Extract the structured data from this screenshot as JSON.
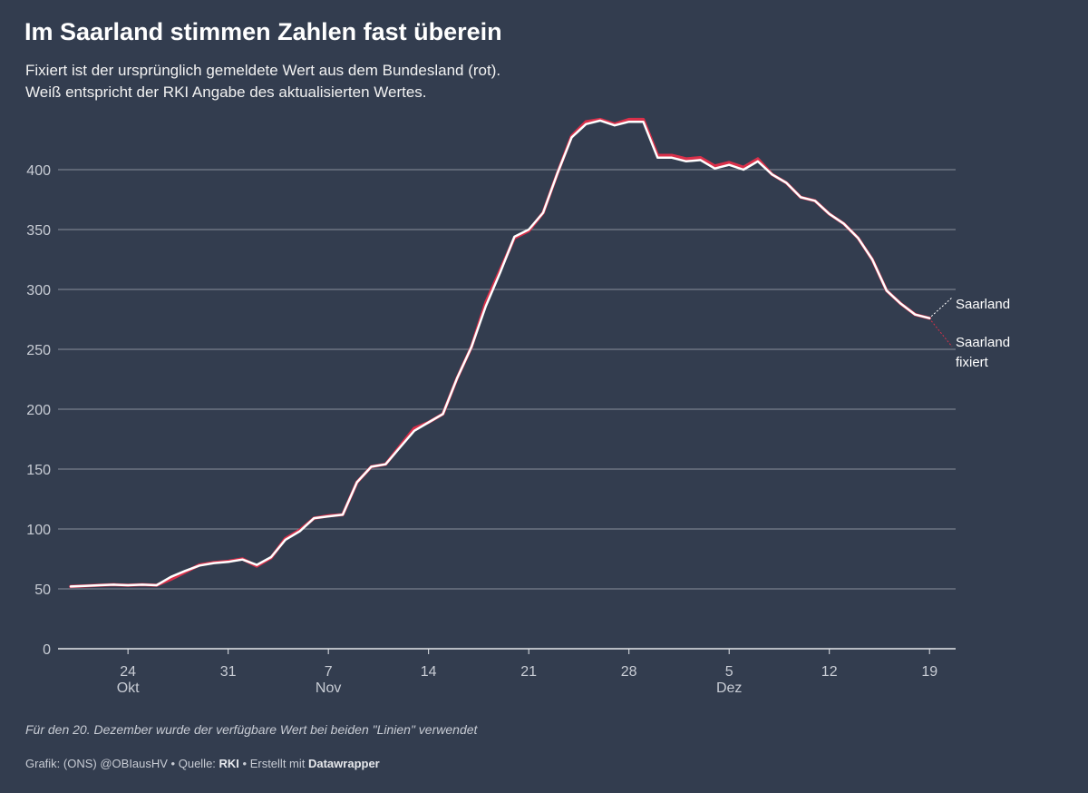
{
  "title": "Im Saarland stimmen Zahlen fast überein",
  "subtitle_lines": [
    "Fixiert ist der ursprünglich gemeldete Wert aus dem Bundesland (rot).",
    "Weiß entspricht der RKI Angabe des aktualisierten Wertes."
  ],
  "note": "Für den 20. Dezember wurde der verfügbare Wert bei beiden \"Linien\" verwendet",
  "footer": {
    "credit_prefix": "Grafik: (ONS) @OBIausHV • Quelle: ",
    "source": "RKI",
    "made_with_prefix": " • Erstellt mit ",
    "tool": "Datawrapper"
  },
  "colors": {
    "background": "#333d4f",
    "updated_line": "#ffffff",
    "fixed_line": "#d9304a",
    "grid": "#8a909b",
    "tick_text": "#c8ccd4"
  },
  "chart_data": {
    "type": "line",
    "x_start": "2020-10-20",
    "x_end": "2020-12-20",
    "ylim": [
      0,
      440
    ],
    "y_ticks": [
      0,
      50,
      100,
      150,
      200,
      250,
      300,
      350,
      400
    ],
    "x_ticks": [
      {
        "date": "2020-10-24",
        "day": "24",
        "month": "Okt"
      },
      {
        "date": "2020-10-31",
        "day": "31",
        "month": ""
      },
      {
        "date": "2020-11-07",
        "day": "7",
        "month": "Nov"
      },
      {
        "date": "2020-11-14",
        "day": "14",
        "month": ""
      },
      {
        "date": "2020-11-21",
        "day": "21",
        "month": ""
      },
      {
        "date": "2020-11-28",
        "day": "28",
        "month": ""
      },
      {
        "date": "2020-12-05",
        "day": "5",
        "month": "Dez"
      },
      {
        "date": "2020-12-12",
        "day": "12",
        "month": ""
      },
      {
        "date": "2020-12-19",
        "day": "19",
        "month": ""
      }
    ],
    "grid": true,
    "series": [
      {
        "name": "Saarland fixiert",
        "label_lines": [
          "Saarland",
          "fixiert"
        ],
        "color": "#d9304a",
        "values": [
          52,
          52.5,
          53,
          53.5,
          53,
          53.5,
          53,
          58,
          64,
          70,
          72,
          73,
          75,
          69,
          76,
          92,
          99,
          109,
          111,
          112,
          139,
          152,
          154,
          169,
          184,
          189,
          196,
          226,
          252,
          289,
          316,
          343,
          349,
          364,
          397,
          428,
          440,
          442,
          438,
          442,
          442,
          412,
          412,
          409,
          410,
          403,
          406,
          402,
          409,
          396,
          389,
          377,
          374,
          363,
          355,
          343,
          325,
          299,
          288,
          279,
          276
        ],
        "raw_label": "fixed"
      },
      {
        "name": "Saarland",
        "label_lines": [
          "Saarland"
        ],
        "color": "#ffffff",
        "values": [
          52,
          52.5,
          53,
          53.5,
          53,
          53.5,
          53,
          60,
          65,
          69.5,
          71.5,
          72.5,
          74.5,
          70,
          76.5,
          91,
          98,
          109,
          110.5,
          112,
          139,
          152,
          154,
          168,
          182,
          189,
          196,
          226,
          252,
          286,
          314,
          344,
          350,
          364,
          397,
          427,
          438,
          441,
          437,
          440,
          440,
          410,
          410,
          407,
          408,
          401,
          404,
          400,
          407,
          396,
          389,
          377,
          374,
          363,
          355,
          343,
          325,
          299,
          288,
          279,
          276
        ]
      }
    ]
  }
}
